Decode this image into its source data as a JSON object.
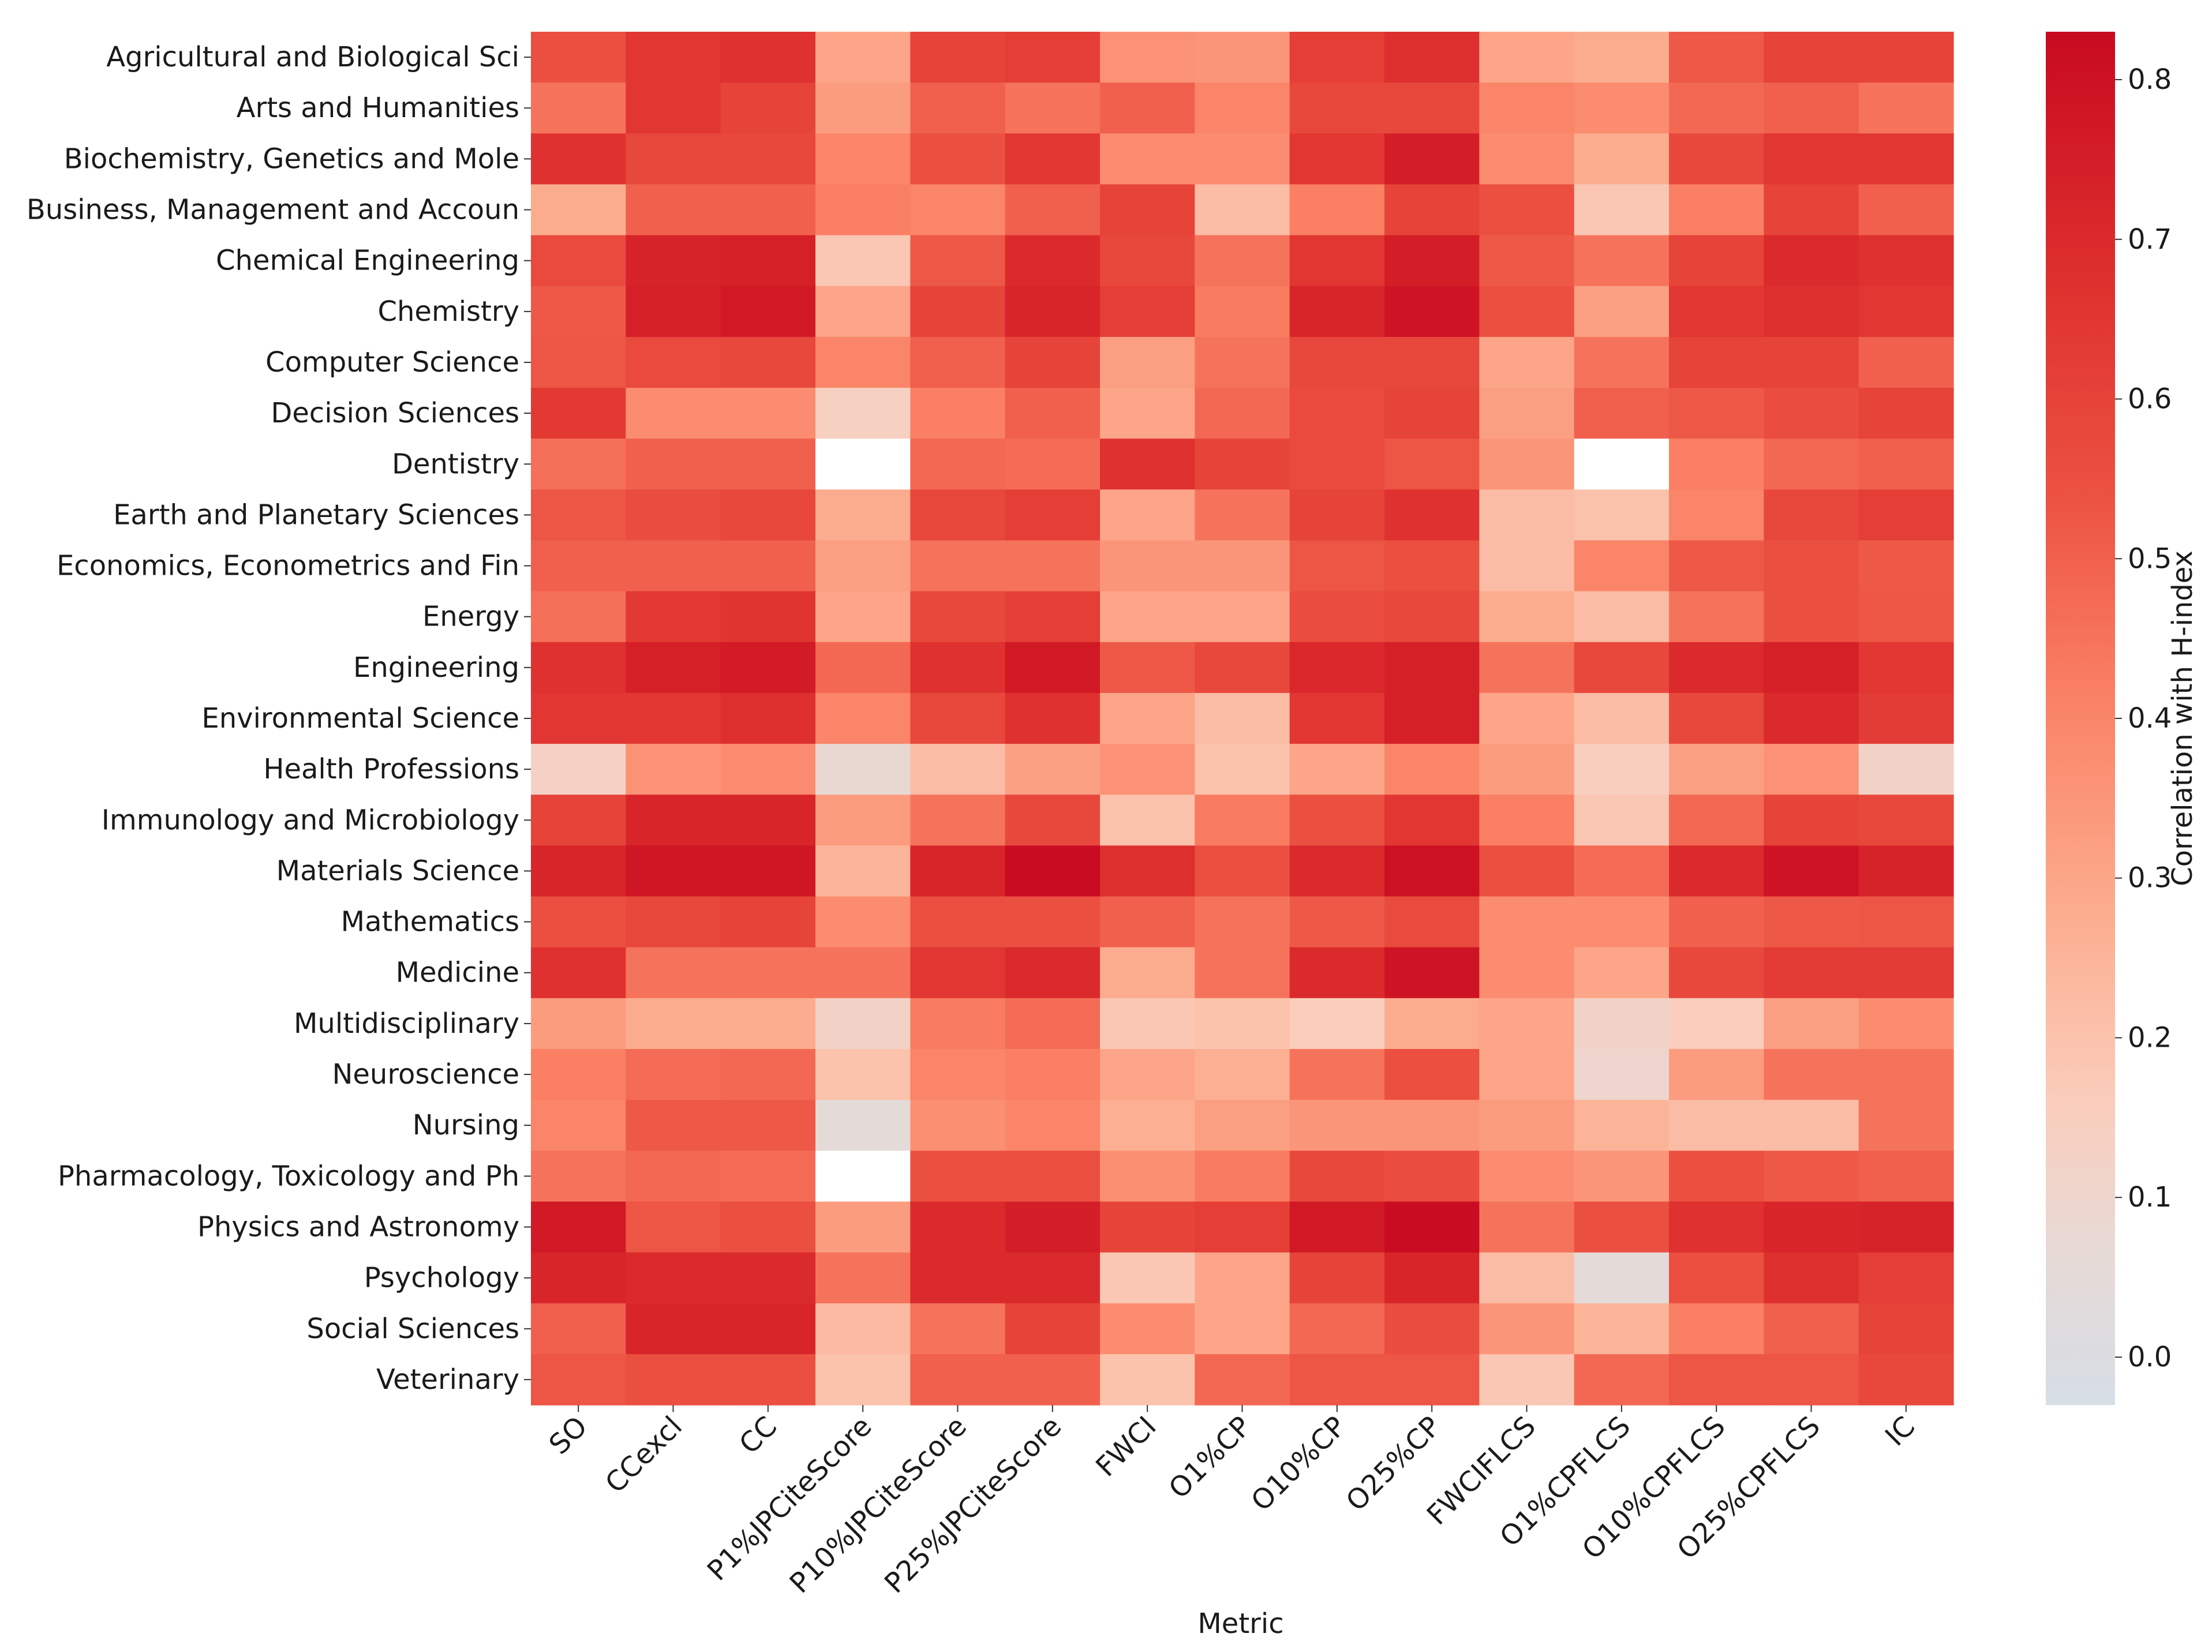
{
  "chart_data": {
    "type": "heatmap",
    "xlabel": "Metric",
    "ylabel": "",
    "colorbar_label": "Correlation with H-index",
    "colorbar_range": [
      -0.03,
      0.83
    ],
    "colorbar_ticks": [
      0.0,
      0.1,
      0.2,
      0.3,
      0.4,
      0.5,
      0.6,
      0.7,
      0.8
    ],
    "colorbar_tick_labels": [
      "0.0",
      "0.1",
      "0.2",
      "0.3",
      "0.4",
      "0.5",
      "0.6",
      "0.7",
      "0.8"
    ],
    "x_categories": [
      "SO",
      "CCexcl",
      "CC",
      "P1%JPCiteScore",
      "P10%JPCiteScore",
      "P25%JPCiteScore",
      "FWCI",
      "O1%CP",
      "O10%CP",
      "O25%CP",
      "FWCIFLCS",
      "O1%CPFLCS",
      "O10%CPFLCS",
      "O25%CPFLCS",
      "IC"
    ],
    "y_categories": [
      "Agricultural and Biological Sci",
      "Arts and Humanities",
      "Biochemistry, Genetics and Mole",
      "Business, Management and Accoun",
      "Chemical Engineering",
      "Chemistry",
      "Computer Science",
      "Decision Sciences",
      "Dentistry",
      "Earth and Planetary Sciences",
      "Economics, Econometrics and Fin",
      "Energy",
      "Engineering",
      "Environmental Science",
      "Health Professions",
      "Immunology and Microbiology",
      "Materials Science",
      "Mathematics",
      "Medicine",
      "Multidisciplinary",
      "Neuroscience",
      "Nursing",
      "Pharmacology, Toxicology and Ph",
      "Physics and Astronomy",
      "Psychology",
      "Social Sciences",
      "Veterinary"
    ],
    "values": [
      [
        0.55,
        0.65,
        0.67,
        0.3,
        0.6,
        0.62,
        0.36,
        0.35,
        0.62,
        0.68,
        0.3,
        0.28,
        0.52,
        0.6,
        0.6
      ],
      [
        0.45,
        0.65,
        0.6,
        0.33,
        0.5,
        0.45,
        0.5,
        0.4,
        0.58,
        0.58,
        0.4,
        0.38,
        0.48,
        0.5,
        0.45
      ],
      [
        0.67,
        0.58,
        0.58,
        0.4,
        0.55,
        0.65,
        0.38,
        0.38,
        0.65,
        0.75,
        0.38,
        0.28,
        0.58,
        0.65,
        0.65
      ],
      [
        0.28,
        0.5,
        0.5,
        0.42,
        0.4,
        0.5,
        0.6,
        0.22,
        0.42,
        0.6,
        0.55,
        0.18,
        0.42,
        0.6,
        0.5
      ],
      [
        0.57,
        0.73,
        0.74,
        0.18,
        0.52,
        0.7,
        0.58,
        0.45,
        0.65,
        0.75,
        0.52,
        0.45,
        0.6,
        0.7,
        0.67
      ],
      [
        0.52,
        0.74,
        0.77,
        0.3,
        0.6,
        0.72,
        0.62,
        0.43,
        0.72,
        0.79,
        0.55,
        0.32,
        0.65,
        0.68,
        0.65
      ],
      [
        0.53,
        0.57,
        0.58,
        0.4,
        0.5,
        0.6,
        0.32,
        0.45,
        0.58,
        0.58,
        0.3,
        0.45,
        0.6,
        0.6,
        0.5
      ],
      [
        0.64,
        0.38,
        0.38,
        0.14,
        0.42,
        0.5,
        0.3,
        0.48,
        0.57,
        0.6,
        0.32,
        0.5,
        0.52,
        0.56,
        0.6
      ],
      [
        0.46,
        0.5,
        0.5,
        null,
        0.48,
        0.47,
        0.67,
        0.6,
        0.57,
        0.53,
        0.35,
        null,
        0.42,
        0.48,
        0.5
      ],
      [
        0.53,
        0.56,
        0.58,
        0.28,
        0.58,
        0.62,
        0.3,
        0.45,
        0.6,
        0.67,
        0.22,
        0.2,
        0.4,
        0.58,
        0.62
      ],
      [
        0.5,
        0.5,
        0.5,
        0.32,
        0.45,
        0.45,
        0.35,
        0.35,
        0.53,
        0.55,
        0.22,
        0.4,
        0.52,
        0.55,
        0.52
      ],
      [
        0.46,
        0.64,
        0.66,
        0.3,
        0.58,
        0.62,
        0.3,
        0.3,
        0.56,
        0.58,
        0.28,
        0.22,
        0.45,
        0.55,
        0.53
      ],
      [
        0.67,
        0.74,
        0.76,
        0.48,
        0.67,
        0.77,
        0.52,
        0.58,
        0.71,
        0.74,
        0.45,
        0.58,
        0.7,
        0.74,
        0.65
      ],
      [
        0.65,
        0.65,
        0.68,
        0.4,
        0.58,
        0.67,
        0.3,
        0.22,
        0.65,
        0.74,
        0.3,
        0.22,
        0.58,
        0.7,
        0.63
      ],
      [
        0.13,
        0.36,
        0.38,
        0.08,
        0.22,
        0.32,
        0.36,
        0.2,
        0.3,
        0.4,
        0.33,
        0.15,
        0.32,
        0.36,
        0.12
      ],
      [
        0.6,
        0.72,
        0.72,
        0.33,
        0.45,
        0.58,
        0.2,
        0.43,
        0.55,
        0.65,
        0.42,
        0.18,
        0.48,
        0.6,
        0.58
      ],
      [
        0.72,
        0.78,
        0.78,
        0.25,
        0.72,
        0.82,
        0.68,
        0.55,
        0.7,
        0.8,
        0.55,
        0.47,
        0.7,
        0.79,
        0.73
      ],
      [
        0.55,
        0.58,
        0.6,
        0.38,
        0.55,
        0.55,
        0.5,
        0.45,
        0.52,
        0.57,
        0.38,
        0.38,
        0.5,
        0.52,
        0.53
      ],
      [
        0.67,
        0.45,
        0.45,
        0.45,
        0.65,
        0.7,
        0.28,
        0.45,
        0.7,
        0.79,
        0.38,
        0.3,
        0.58,
        0.63,
        0.63
      ],
      [
        0.33,
        0.28,
        0.28,
        0.12,
        0.43,
        0.47,
        0.18,
        0.2,
        0.16,
        0.28,
        0.3,
        0.12,
        0.16,
        0.32,
        0.38
      ],
      [
        0.42,
        0.47,
        0.48,
        0.2,
        0.4,
        0.42,
        0.3,
        0.27,
        0.45,
        0.55,
        0.3,
        0.1,
        0.33,
        0.45,
        0.45
      ],
      [
        0.4,
        0.52,
        0.52,
        0.05,
        0.37,
        0.4,
        0.27,
        0.32,
        0.35,
        0.35,
        0.33,
        0.25,
        0.22,
        0.22,
        0.45
      ],
      [
        0.45,
        0.48,
        0.47,
        null,
        0.55,
        0.55,
        0.37,
        0.43,
        0.58,
        0.56,
        0.38,
        0.35,
        0.55,
        0.52,
        0.5
      ],
      [
        0.77,
        0.53,
        0.55,
        0.33,
        0.7,
        0.75,
        0.6,
        0.62,
        0.77,
        0.82,
        0.45,
        0.55,
        0.67,
        0.72,
        0.73
      ],
      [
        0.72,
        0.7,
        0.7,
        0.45,
        0.7,
        0.7,
        0.18,
        0.3,
        0.6,
        0.72,
        0.22,
        0.05,
        0.55,
        0.68,
        0.62
      ],
      [
        0.5,
        0.72,
        0.72,
        0.23,
        0.45,
        0.6,
        0.38,
        0.3,
        0.48,
        0.56,
        0.35,
        0.25,
        0.42,
        0.5,
        0.6
      ],
      [
        0.53,
        0.55,
        0.55,
        0.2,
        0.5,
        0.5,
        0.2,
        0.48,
        0.53,
        0.53,
        0.18,
        0.48,
        0.53,
        0.53,
        0.58
      ]
    ]
  }
}
